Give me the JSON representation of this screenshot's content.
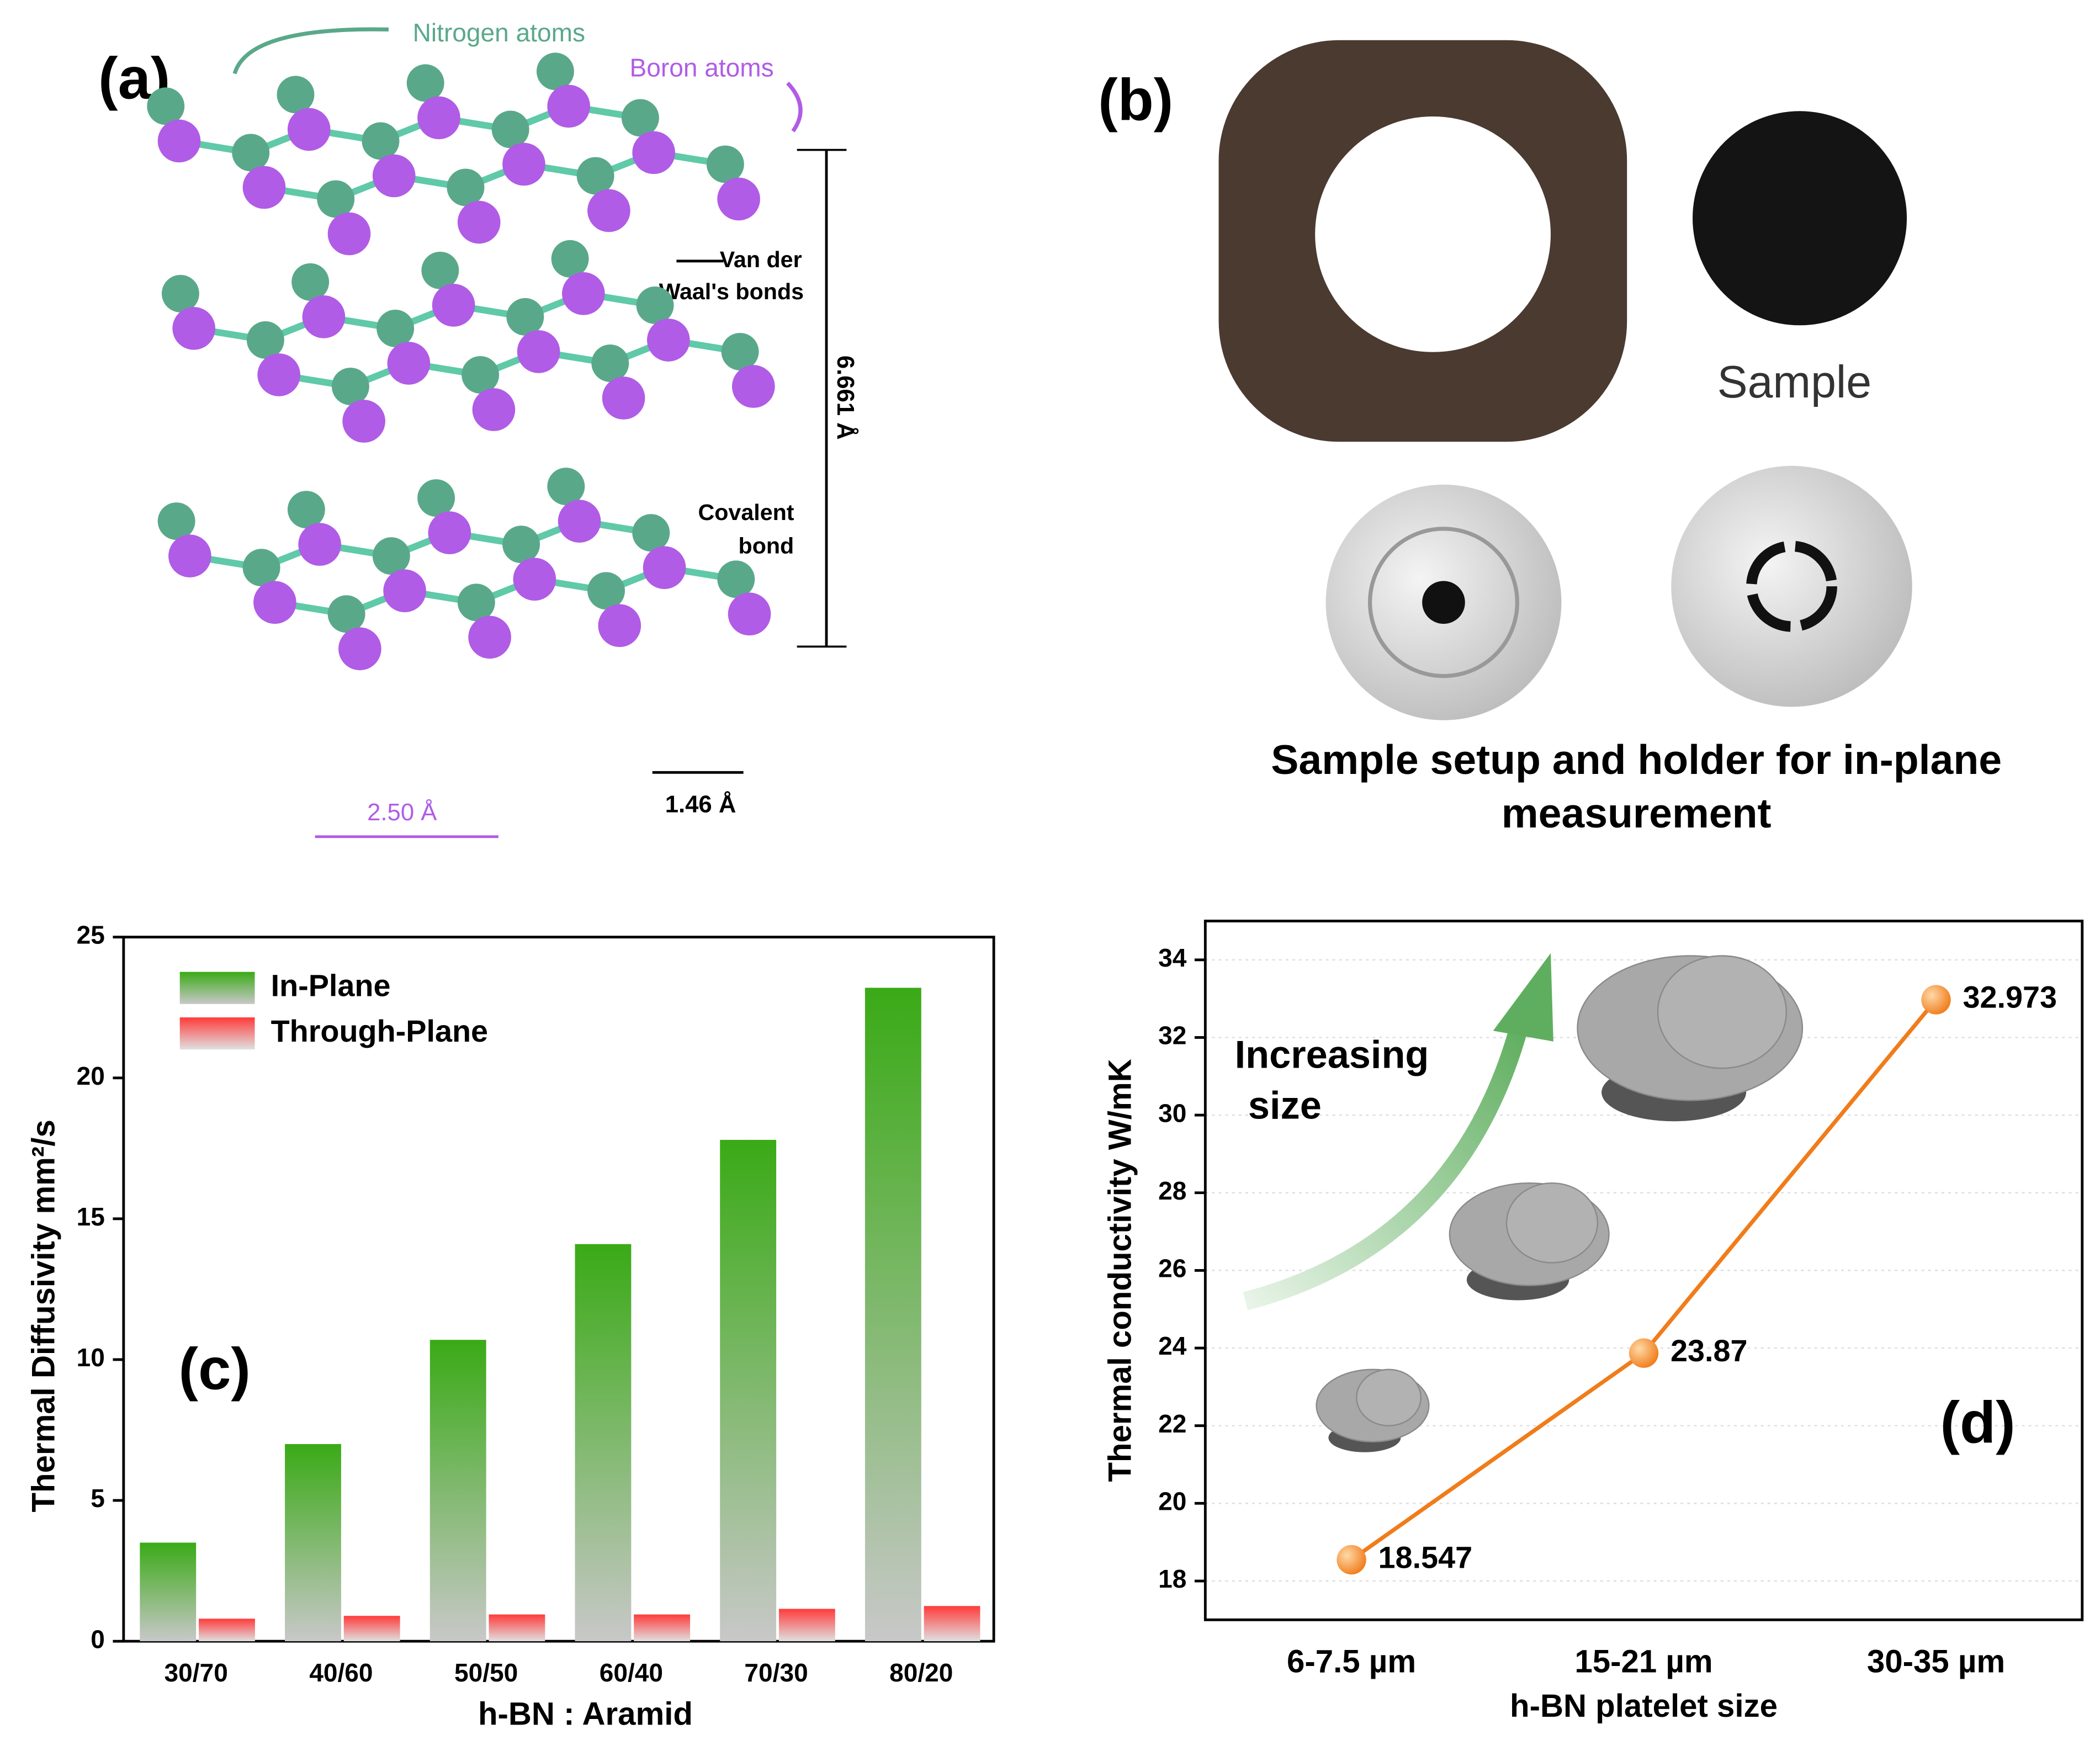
{
  "panel_a": {
    "label": "(a)",
    "nitrogen": "Nitrogen atoms",
    "boron": "Boron atoms",
    "vdw_lines": [
      "Van der",
      "Waal's bonds"
    ],
    "height": "6.661 Å",
    "covalent_lines": [
      "Covalent",
      "bond"
    ],
    "spacing_bn": "2.50 Å",
    "spacing_bond": "1.46 Å"
  },
  "panel_b": {
    "label": "(b)",
    "sample": "Sample",
    "caption_lines": [
      "Sample setup and holder for in-plane",
      "measurement"
    ]
  },
  "chart_data": [
    {
      "type": "bar",
      "panel_label": "(c)",
      "xlabel": "h-BN : Aramid",
      "ylabel": "Thermal Diffusivity mm²/s",
      "categories": [
        "30/70",
        "40/60",
        "50/50",
        "60/40",
        "70/30",
        "80/20"
      ],
      "series": [
        {
          "name": "In-Plane",
          "color": "#3aaa16",
          "values": [
            3.5,
            7.0,
            10.7,
            14.1,
            17.8,
            23.2
          ]
        },
        {
          "name": "Through-Plane",
          "color": "#ff3b3b",
          "values": [
            0.8,
            0.9,
            0.95,
            0.95,
            1.15,
            1.25
          ]
        }
      ],
      "ylim": [
        0,
        25
      ],
      "yticks": [
        0,
        5,
        10,
        15,
        20,
        25
      ],
      "legend": "upper left"
    },
    {
      "type": "line",
      "panel_label": "(d)",
      "annotation_lines": [
        "Increasing",
        "size"
      ],
      "xlabel": "h-BN platelet size",
      "ylabel": "Thermal conductivity W/mK",
      "categories": [
        "6-7.5 µm",
        "15-21 µm",
        "30-35 µm"
      ],
      "values": [
        18.547,
        23.87,
        32.973
      ],
      "color": "#f07c1a",
      "ylim": [
        17,
        35
      ],
      "yticks": [
        18,
        20,
        22,
        24,
        26,
        28,
        30,
        32,
        34
      ],
      "grid": true
    }
  ]
}
